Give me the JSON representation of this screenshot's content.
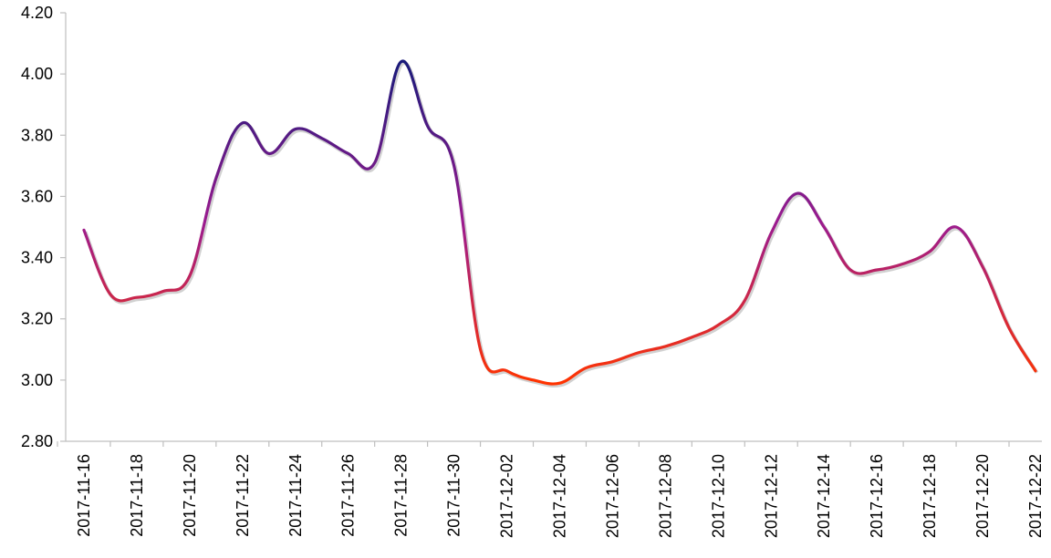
{
  "chart_data": {
    "type": "line",
    "title": "",
    "xlabel": "",
    "ylabel": "",
    "ylim": [
      2.8,
      4.2
    ],
    "yticks": [
      "2.80",
      "3.00",
      "3.20",
      "3.40",
      "3.60",
      "3.80",
      "4.00",
      "4.20"
    ],
    "grid": false,
    "legend": "none",
    "x_tick_labels": [
      "2017-11-16",
      "2017-11-18",
      "2017-11-20",
      "2017-11-22",
      "2017-11-24",
      "2017-11-26",
      "2017-11-28",
      "2017-11-30",
      "2017-12-02",
      "2017-12-04",
      "2017-12-06",
      "2017-12-08",
      "2017-12-10",
      "2017-12-12",
      "2017-12-14",
      "2017-12-16",
      "2017-12-18",
      "2017-12-20",
      "2017-12-22"
    ],
    "x": [
      "2017-11-16",
      "2017-11-17",
      "2017-11-18",
      "2017-11-19",
      "2017-11-20",
      "2017-11-21",
      "2017-11-22",
      "2017-11-23",
      "2017-11-24",
      "2017-11-25",
      "2017-11-26",
      "2017-11-27",
      "2017-11-28",
      "2017-11-29",
      "2017-11-30",
      "2017-12-01",
      "2017-12-02",
      "2017-12-03",
      "2017-12-04",
      "2017-12-05",
      "2017-12-06",
      "2017-12-07",
      "2017-12-08",
      "2017-12-09",
      "2017-12-10",
      "2017-12-11",
      "2017-12-12",
      "2017-12-13",
      "2017-12-14",
      "2017-12-15",
      "2017-12-16",
      "2017-12-17",
      "2017-12-18",
      "2017-12-19",
      "2017-12-20",
      "2017-12-21",
      "2017-12-22"
    ],
    "series": [
      {
        "values": [
          3.49,
          3.28,
          3.27,
          3.29,
          3.34,
          3.66,
          3.84,
          3.74,
          3.82,
          3.79,
          3.74,
          3.71,
          4.04,
          3.83,
          3.7,
          3.1,
          3.03,
          3.0,
          2.99,
          3.04,
          3.06,
          3.09,
          3.11,
          3.14,
          3.18,
          3.26,
          3.48,
          3.61,
          3.5,
          3.36,
          3.36,
          3.38,
          3.42,
          3.5,
          3.37,
          3.17,
          3.03
        ]
      }
    ],
    "colors": {
      "low": "#ff3300",
      "mid": "#9b1b8f",
      "high": "#1a1a7a",
      "axis": "#bfbfbf"
    }
  }
}
